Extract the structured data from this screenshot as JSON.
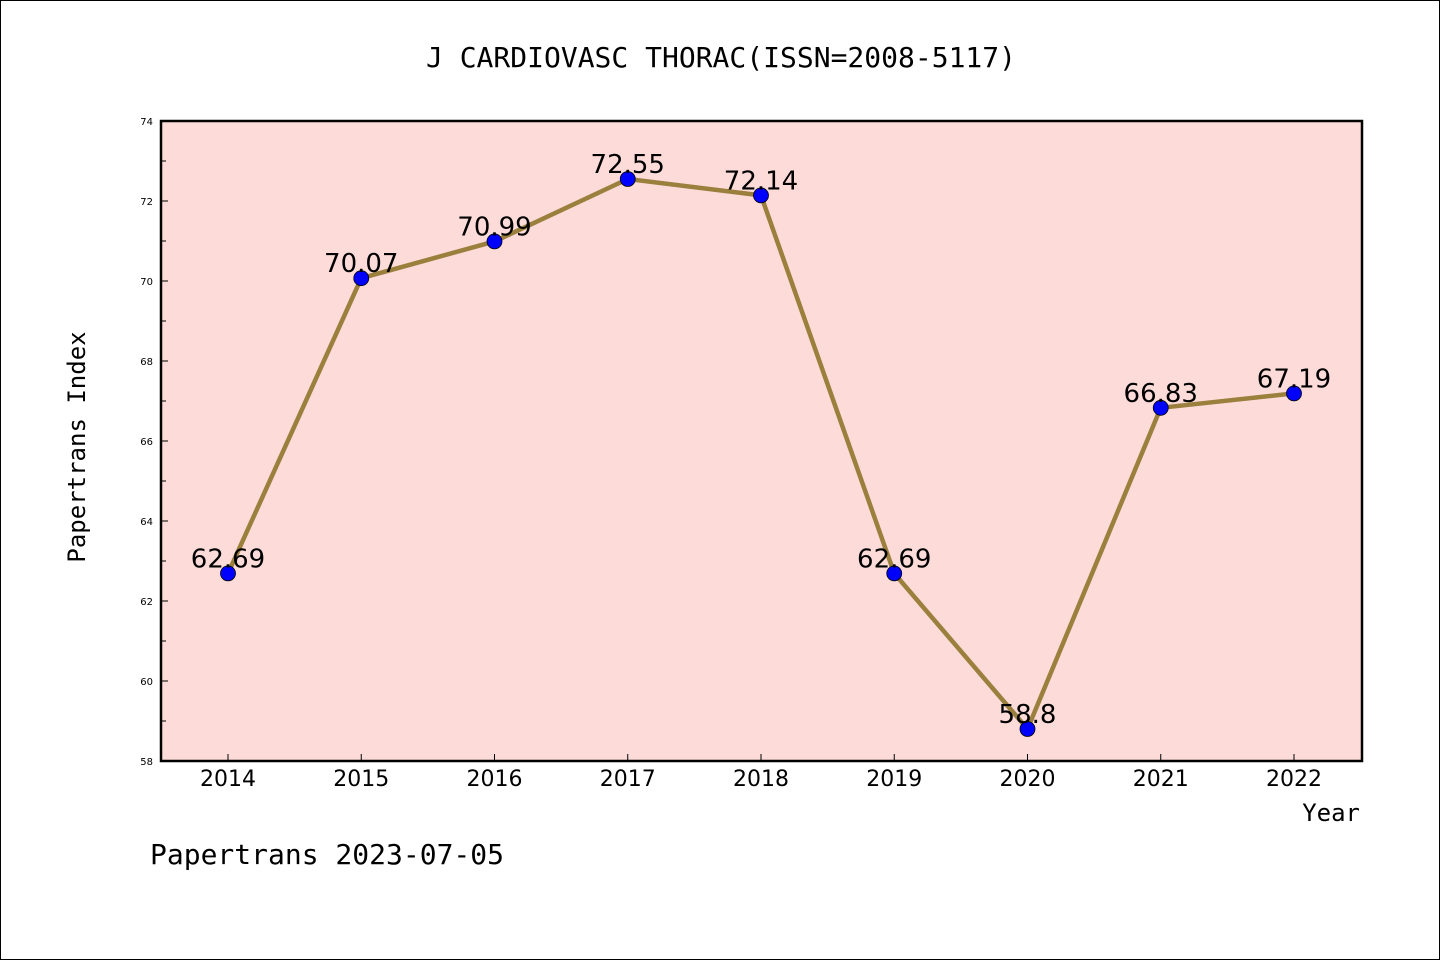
{
  "chart_data": {
    "type": "line",
    "title": "J CARDIOVASC THORAC(ISSN=2008-5117)",
    "xlabel": "Year",
    "ylabel": "Papertrans Index",
    "categories": [
      "2014",
      "2015",
      "2016",
      "2017",
      "2018",
      "2019",
      "2020",
      "2021",
      "2022"
    ],
    "series": [
      {
        "values": [
          62.69,
          70.07,
          70.99,
          72.55,
          72.14,
          62.69,
          58.8,
          66.83,
          67.19
        ],
        "labels": [
          "62.69",
          "70.07",
          "70.99",
          "72.55",
          "72.14",
          "62.69",
          "58.8",
          "66.83",
          "67.19"
        ]
      }
    ],
    "ylim": [
      58,
      74
    ],
    "yticks": [
      "58",
      "60",
      "62",
      "64",
      "66",
      "68",
      "70",
      "72",
      "74"
    ],
    "grid": false,
    "plot_background": "#fddbd9",
    "line_color": "#9b7f3c",
    "marker_color": "#0000ff",
    "footer": "Papertrans 2023-07-05"
  }
}
